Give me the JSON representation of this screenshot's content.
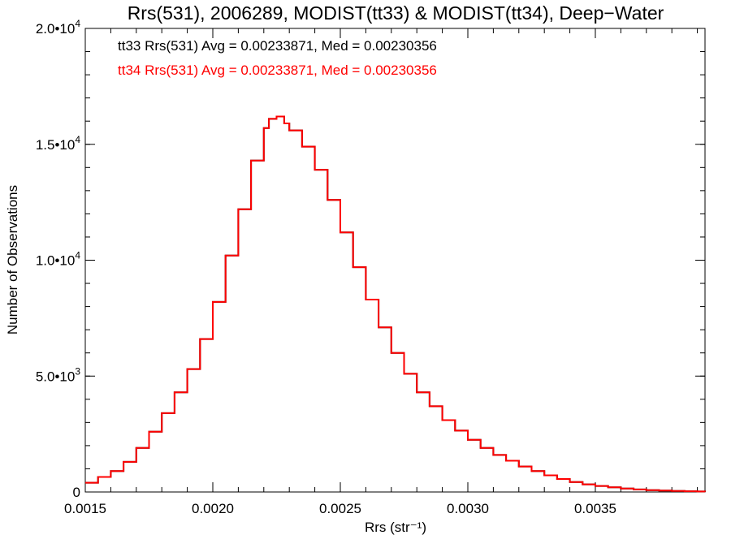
{
  "chart_data": {
    "type": "line",
    "style": "histogram-step",
    "title": "Rrs(531), 2006289, MODIST(tt33) & MODIST(tt34), Deep−Water",
    "xlabel": "Rrs (str⁻¹)",
    "ylabel": "Number of Observations",
    "xlim": [
      0.0015,
      0.00393
    ],
    "ylim": [
      0,
      20000
    ],
    "x_ticks": [
      0.0015,
      0.002,
      0.0025,
      0.003,
      0.0035
    ],
    "x_tick_labels": [
      "0.0015",
      "0.0020",
      "0.0025",
      "0.0030",
      "0.0035"
    ],
    "y_ticks": [
      0,
      5000,
      10000,
      15000,
      20000
    ],
    "y_tick_labels": [
      {
        "mantissa": "0",
        "exponent": ""
      },
      {
        "mantissa": "5.0•10",
        "exponent": "3"
      },
      {
        "mantissa": "1.0•10",
        "exponent": "4"
      },
      {
        "mantissa": "1.5•10",
        "exponent": "4"
      },
      {
        "mantissa": "2.0•10",
        "exponent": "4"
      }
    ],
    "annotations": [
      {
        "text": "tt33 Rrs(531) Avg = 0.00233871, Med = 0.00230356",
        "color": "#000000"
      },
      {
        "text": "tt34 Rrs(531) Avg = 0.00233871, Med = 0.00230356",
        "color": "#ff0000"
      }
    ],
    "series": [
      {
        "name": "tt33",
        "color": "#000000",
        "x": [
          0.0015,
          0.00155,
          0.0016,
          0.00165,
          0.0017,
          0.00175,
          0.0018,
          0.00185,
          0.0019,
          0.00195,
          0.002,
          0.00205,
          0.0021,
          0.00215,
          0.0022,
          0.00222,
          0.00225,
          0.00228,
          0.0023,
          0.00235,
          0.0024,
          0.00245,
          0.0025,
          0.00255,
          0.0026,
          0.00265,
          0.0027,
          0.00275,
          0.0028,
          0.00285,
          0.0029,
          0.00295,
          0.003,
          0.00305,
          0.0031,
          0.00315,
          0.0032,
          0.00325,
          0.0033,
          0.00335,
          0.0034,
          0.00345,
          0.0035,
          0.00355,
          0.0036,
          0.00365,
          0.0037,
          0.00375,
          0.0038,
          0.00385,
          0.0039,
          0.00393
        ],
        "y": [
          400,
          650,
          900,
          1300,
          1900,
          2600,
          3400,
          4300,
          5300,
          6600,
          8200,
          10200,
          12200,
          14300,
          15700,
          16100,
          16200,
          15900,
          15600,
          14900,
          13900,
          12600,
          11200,
          9700,
          8300,
          7100,
          6000,
          5100,
          4300,
          3700,
          3100,
          2650,
          2250,
          1900,
          1600,
          1350,
          1100,
          900,
          720,
          560,
          430,
          330,
          260,
          200,
          150,
          110,
          80,
          60,
          45,
          30,
          20,
          10
        ]
      },
      {
        "name": "tt34",
        "color": "#ff0000",
        "x": [
          0.0015,
          0.00155,
          0.0016,
          0.00165,
          0.0017,
          0.00175,
          0.0018,
          0.00185,
          0.0019,
          0.00195,
          0.002,
          0.00205,
          0.0021,
          0.00215,
          0.0022,
          0.00222,
          0.00225,
          0.00228,
          0.0023,
          0.00235,
          0.0024,
          0.00245,
          0.0025,
          0.00255,
          0.0026,
          0.00265,
          0.0027,
          0.00275,
          0.0028,
          0.00285,
          0.0029,
          0.00295,
          0.003,
          0.00305,
          0.0031,
          0.00315,
          0.0032,
          0.00325,
          0.0033,
          0.00335,
          0.0034,
          0.00345,
          0.0035,
          0.00355,
          0.0036,
          0.00365,
          0.0037,
          0.00375,
          0.0038,
          0.00385,
          0.0039,
          0.00393
        ],
        "y": [
          400,
          650,
          900,
          1300,
          1900,
          2600,
          3400,
          4300,
          5300,
          6600,
          8200,
          10200,
          12200,
          14300,
          15700,
          16100,
          16200,
          15900,
          15600,
          14900,
          13900,
          12600,
          11200,
          9700,
          8300,
          7100,
          6000,
          5100,
          4300,
          3700,
          3100,
          2650,
          2250,
          1900,
          1600,
          1350,
          1100,
          900,
          720,
          560,
          430,
          330,
          260,
          200,
          150,
          110,
          80,
          60,
          45,
          30,
          20,
          10
        ]
      }
    ]
  }
}
